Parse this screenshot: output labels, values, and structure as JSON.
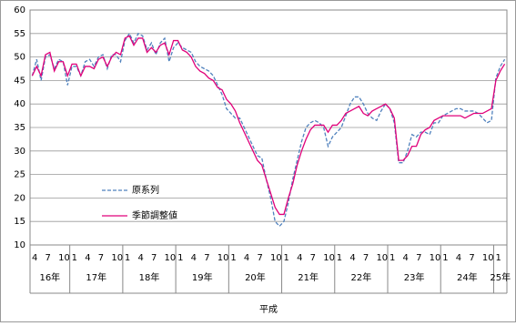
{
  "chart_data": {
    "type": "line",
    "categories": [
      "4",
      null,
      null,
      "7",
      null,
      null,
      "10",
      null,
      null,
      "1",
      null,
      null,
      "4",
      null,
      null,
      "7",
      null,
      null,
      "10",
      null,
      null,
      "1",
      null,
      null,
      "4",
      null,
      null,
      "7",
      null,
      null,
      "10",
      null,
      null,
      "1",
      null,
      null,
      "4",
      null,
      null,
      "7",
      null,
      null,
      "10",
      null,
      null,
      "1",
      null,
      null,
      "4",
      null,
      null,
      "7",
      null,
      null,
      "10",
      null,
      null,
      "1",
      null,
      null,
      "4",
      null,
      null,
      "7",
      null,
      null,
      "10",
      null,
      null,
      "1",
      null,
      null,
      "4",
      null,
      null,
      "7",
      null,
      null,
      "10",
      null,
      null,
      "1",
      null,
      null,
      "4",
      null,
      null,
      "7",
      null,
      null,
      "10",
      null,
      null,
      "1",
      null,
      null,
      "4",
      null,
      null,
      "7",
      null,
      null,
      "10",
      null,
      null,
      "1",
      null,
      null
    ],
    "year_labels": [
      "16年",
      "17年",
      "18年",
      "19年",
      "20年",
      "21年",
      "22年",
      "23年",
      "24年",
      "25年"
    ],
    "x_label": "平成",
    "series": [
      {
        "name": "原系列",
        "color": "#4f81bd",
        "dash": true,
        "values": [
          46,
          49.5,
          45,
          50,
          50.5,
          47.5,
          49.5,
          49,
          44,
          48,
          48,
          46,
          49,
          49.5,
          48,
          50,
          50.5,
          47.5,
          50.5,
          50.5,
          49,
          53.5,
          55,
          53,
          55,
          54.5,
          51.5,
          53,
          50.5,
          53,
          54,
          49,
          52,
          53,
          52,
          51.5,
          51,
          49,
          48,
          47.5,
          47,
          46,
          44,
          42,
          39,
          38,
          37,
          37,
          35,
          33,
          31,
          29,
          28.5,
          24,
          20,
          15,
          14,
          15,
          19,
          24,
          28,
          32,
          35,
          36,
          36.5,
          36,
          35,
          31,
          33,
          34,
          35,
          37.5,
          40,
          41.5,
          41.5,
          40,
          38,
          37,
          36.5,
          38.5,
          40,
          39,
          36,
          27.5,
          27.5,
          30,
          33.5,
          33,
          34,
          34,
          33.5,
          36,
          36,
          37.5,
          38,
          38.5,
          39,
          39,
          38.5,
          38.5,
          38.5,
          38,
          37,
          36,
          36.5,
          45.5,
          48,
          49.5
        ]
      },
      {
        "name": "季節調整値",
        "color": "#e0007a",
        "dash": false,
        "values": [
          46,
          48,
          46,
          50.5,
          51,
          47,
          49,
          49,
          46,
          48.5,
          48.5,
          46,
          48,
          48,
          47.5,
          49.5,
          50,
          48,
          50,
          51,
          50.5,
          54,
          54.5,
          52.5,
          54,
          54,
          51,
          52,
          51,
          52.5,
          53,
          50.5,
          53.5,
          53.5,
          51.5,
          51,
          50,
          48,
          47,
          46.5,
          45.5,
          45,
          43.5,
          43,
          41,
          40,
          38.5,
          36,
          34,
          32,
          30,
          28,
          27,
          24,
          21,
          18,
          16.5,
          16.5,
          20,
          23,
          27,
          30,
          32.5,
          34.5,
          35.5,
          35.5,
          35.5,
          34,
          35.5,
          35.5,
          36.5,
          38,
          38.5,
          39,
          39.5,
          38,
          37.5,
          38.5,
          39,
          39.5,
          40,
          39,
          37,
          28,
          28,
          29,
          31,
          31,
          33.5,
          34.5,
          35,
          36.5,
          37,
          37.5,
          37.5,
          37.5,
          37.5,
          37.5,
          37,
          37.5,
          38,
          38,
          38,
          38.5,
          39,
          45,
          47,
          48.5
        ]
      }
    ],
    "ylim": [
      10,
      60
    ],
    "yticks": [
      10,
      15,
      20,
      25,
      30,
      35,
      40,
      45,
      50,
      55,
      60
    ],
    "grid": true
  }
}
